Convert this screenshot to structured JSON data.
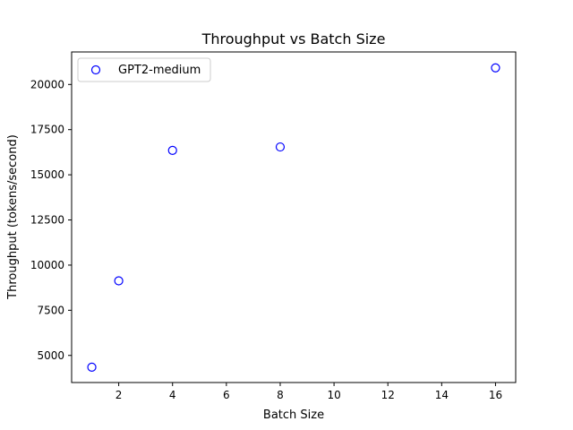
{
  "chart_data": {
    "type": "scatter",
    "title": "Throughput vs Batch Size",
    "xlabel": "Batch Size",
    "ylabel": "Throughput (tokens/second)",
    "xlim": [
      0.25,
      16.75
    ],
    "ylim": [
      3500,
      21800
    ],
    "xticks": [
      2,
      4,
      6,
      8,
      10,
      12,
      14,
      16
    ],
    "yticks": [
      5000,
      7500,
      10000,
      12500,
      15000,
      17500,
      20000
    ],
    "grid": false,
    "legend_position": "top-left",
    "series": [
      {
        "name": "GPT2-medium",
        "marker": "open-circle",
        "color": "#0000ff",
        "x": [
          1,
          2,
          4,
          8,
          16
        ],
        "y": [
          4350,
          9130,
          16350,
          16540,
          20920
        ]
      }
    ]
  }
}
